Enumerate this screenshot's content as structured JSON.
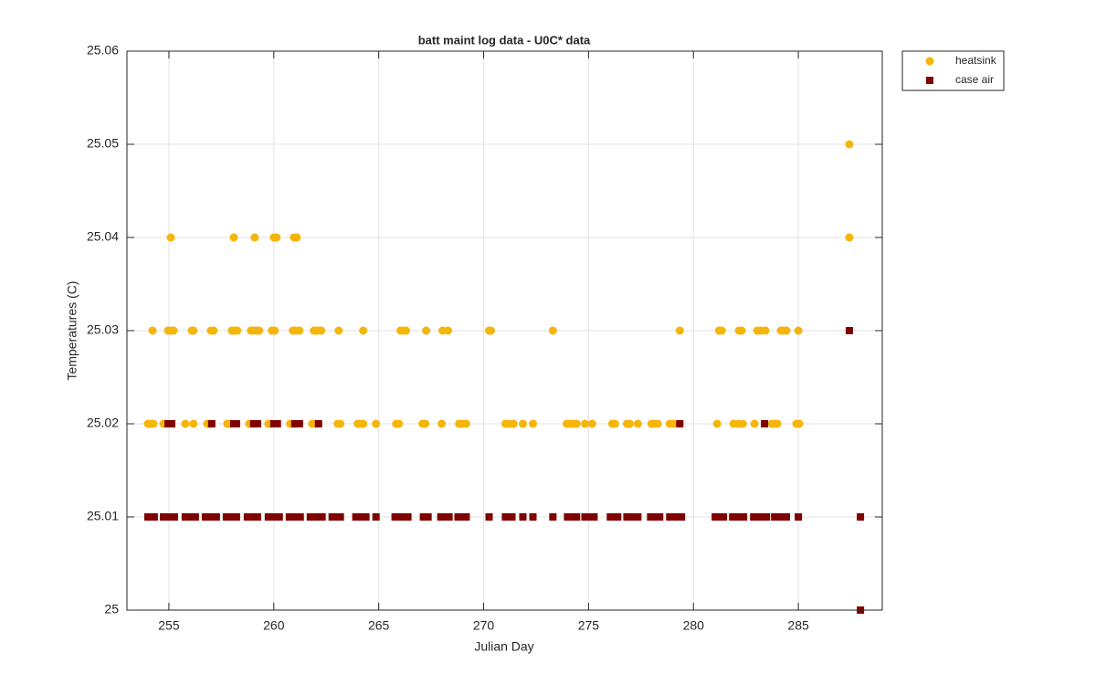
{
  "chart_data": {
    "type": "scatter",
    "title": "batt maint log data - U0C* data",
    "x_label": "Julian Day",
    "y_label": "Temperatures (C)",
    "xlim": [
      253,
      289
    ],
    "xticks": [
      255,
      260,
      265,
      270,
      275,
      280,
      285
    ],
    "ylim": [
      25,
      25.06
    ],
    "yticks": [
      25,
      25.01,
      25.02,
      25.03,
      25.04,
      25.05,
      25.06
    ],
    "grid": true,
    "legend_position": "outside-top-right",
    "series": [
      {
        "name": "heatsink",
        "color": "#f5b50a",
        "marker": "circle",
        "x": [
          254.0,
          254.13,
          254.26,
          254.74,
          255.78,
          256.17,
          256.83,
          256.96,
          257.78,
          257.91,
          258.83,
          259.04,
          259.74,
          259.87,
          260.78,
          261.0,
          261.83,
          261.96,
          263.04,
          263.17,
          264.0,
          264.13,
          264.26,
          264.87,
          265.83,
          265.96,
          267.09,
          267.22,
          268.0,
          268.83,
          268.96,
          269.17,
          271.04,
          271.22,
          271.43,
          271.87,
          272.35,
          273.96,
          274.09,
          274.26,
          274.43,
          274.83,
          275.17,
          276.13,
          276.26,
          276.83,
          276.96,
          277.35,
          278.0,
          278.13,
          278.3,
          278.87,
          279.04,
          281.13,
          281.91,
          282.13,
          282.35,
          282.91,
          283.74,
          283.87,
          284.0,
          284.91,
          285.04,
          254.22,
          254.96,
          255.13,
          255.22,
          256.09,
          256.17,
          257.0,
          257.13,
          258.0,
          258.13,
          258.26,
          258.91,
          259.04,
          259.17,
          259.3,
          259.91,
          260.04,
          260.91,
          261.04,
          261.22,
          261.91,
          262.0,
          262.13,
          262.26,
          263.09,
          264.26,
          266.04,
          266.17,
          266.3,
          267.26,
          268.04,
          268.3,
          270.26,
          270.35,
          273.3,
          279.35,
          281.22,
          281.35,
          282.17,
          282.3,
          283.04,
          283.22,
          283.43,
          284.17,
          284.3,
          284.43,
          285.0,
          255.09,
          258.09,
          259.09,
          260.0,
          260.13,
          260.96,
          261.09,
          287.43,
          287.43
        ],
        "y": [
          25.02,
          25.02,
          25.02,
          25.02,
          25.02,
          25.02,
          25.02,
          25.02,
          25.02,
          25.02,
          25.02,
          25.02,
          25.02,
          25.02,
          25.02,
          25.02,
          25.02,
          25.02,
          25.02,
          25.02,
          25.02,
          25.02,
          25.02,
          25.02,
          25.02,
          25.02,
          25.02,
          25.02,
          25.02,
          25.02,
          25.02,
          25.02,
          25.02,
          25.02,
          25.02,
          25.02,
          25.02,
          25.02,
          25.02,
          25.02,
          25.02,
          25.02,
          25.02,
          25.02,
          25.02,
          25.02,
          25.02,
          25.02,
          25.02,
          25.02,
          25.02,
          25.02,
          25.02,
          25.02,
          25.02,
          25.02,
          25.02,
          25.02,
          25.02,
          25.02,
          25.02,
          25.02,
          25.02,
          25.03,
          25.03,
          25.03,
          25.03,
          25.03,
          25.03,
          25.03,
          25.03,
          25.03,
          25.03,
          25.03,
          25.03,
          25.03,
          25.03,
          25.03,
          25.03,
          25.03,
          25.03,
          25.03,
          25.03,
          25.03,
          25.03,
          25.03,
          25.03,
          25.03,
          25.03,
          25.03,
          25.03,
          25.03,
          25.03,
          25.03,
          25.03,
          25.03,
          25.03,
          25.03,
          25.03,
          25.03,
          25.03,
          25.03,
          25.03,
          25.03,
          25.03,
          25.03,
          25.03,
          25.03,
          25.03,
          25.03,
          25.04,
          25.04,
          25.04,
          25.04,
          25.04,
          25.04,
          25.04,
          25.04,
          25.05
        ]
      },
      {
        "name": "case air",
        "color": "#800000",
        "marker": "square",
        "x": [
          254.0,
          254.13,
          254.3,
          254.74,
          254.91,
          255.09,
          255.26,
          255.78,
          255.96,
          256.13,
          256.26,
          256.74,
          256.91,
          257.09,
          257.26,
          257.74,
          257.91,
          258.09,
          258.22,
          258.74,
          258.91,
          259.09,
          259.22,
          259.74,
          259.91,
          260.09,
          260.26,
          260.74,
          260.91,
          261.09,
          261.26,
          261.74,
          261.91,
          262.09,
          262.3,
          262.78,
          263.0,
          263.17,
          263.91,
          264.09,
          264.26,
          264.39,
          264.87,
          265.78,
          265.96,
          266.13,
          266.39,
          267.13,
          267.35,
          267.96,
          268.17,
          268.35,
          268.78,
          268.96,
          269.17,
          270.26,
          271.04,
          271.22,
          271.35,
          271.87,
          272.35,
          273.3,
          274.0,
          274.22,
          274.43,
          274.83,
          275.04,
          275.26,
          276.04,
          276.22,
          276.39,
          276.83,
          277.0,
          277.17,
          277.35,
          277.96,
          278.17,
          278.39,
          278.87,
          279.04,
          279.26,
          279.43,
          281.04,
          281.26,
          281.43,
          281.87,
          282.04,
          282.22,
          282.39,
          282.87,
          283.04,
          283.26,
          283.48,
          283.87,
          284.04,
          284.22,
          284.43,
          285.0,
          287.96,
          254.96,
          255.13,
          257.04,
          258.09,
          258.22,
          259.04,
          259.22,
          260.0,
          260.17,
          261.0,
          261.22,
          262.13,
          279.35,
          283.39,
          287.43,
          287.96
        ],
        "y": [
          25.01,
          25.01,
          25.01,
          25.01,
          25.01,
          25.01,
          25.01,
          25.01,
          25.01,
          25.01,
          25.01,
          25.01,
          25.01,
          25.01,
          25.01,
          25.01,
          25.01,
          25.01,
          25.01,
          25.01,
          25.01,
          25.01,
          25.01,
          25.01,
          25.01,
          25.01,
          25.01,
          25.01,
          25.01,
          25.01,
          25.01,
          25.01,
          25.01,
          25.01,
          25.01,
          25.01,
          25.01,
          25.01,
          25.01,
          25.01,
          25.01,
          25.01,
          25.01,
          25.01,
          25.01,
          25.01,
          25.01,
          25.01,
          25.01,
          25.01,
          25.01,
          25.01,
          25.01,
          25.01,
          25.01,
          25.01,
          25.01,
          25.01,
          25.01,
          25.01,
          25.01,
          25.01,
          25.01,
          25.01,
          25.01,
          25.01,
          25.01,
          25.01,
          25.01,
          25.01,
          25.01,
          25.01,
          25.01,
          25.01,
          25.01,
          25.01,
          25.01,
          25.01,
          25.01,
          25.01,
          25.01,
          25.01,
          25.01,
          25.01,
          25.01,
          25.01,
          25.01,
          25.01,
          25.01,
          25.01,
          25.01,
          25.01,
          25.01,
          25.01,
          25.01,
          25.01,
          25.01,
          25.01,
          25.01,
          25.02,
          25.02,
          25.02,
          25.02,
          25.02,
          25.02,
          25.02,
          25.02,
          25.02,
          25.02,
          25.02,
          25.02,
          25.02,
          25.02,
          25.03,
          25
        ]
      }
    ]
  }
}
